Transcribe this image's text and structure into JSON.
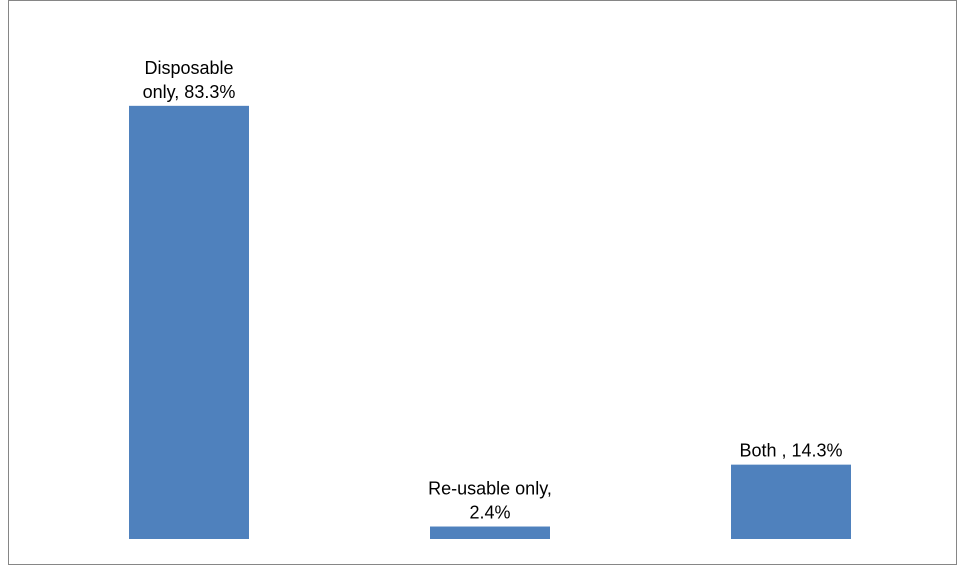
{
  "chart_data": {
    "type": "bar",
    "title": "",
    "xlabel": "",
    "ylabel": "",
    "categories": [
      "Disposable only",
      "Re-usable only",
      "Both"
    ],
    "values": [
      83.3,
      2.4,
      14.3
    ],
    "unit": "%",
    "data_labels": [
      [
        "Disposable",
        "only, 83.3%"
      ],
      [
        "Re-usable only,",
        "2.4%"
      ],
      [
        "Both , 14.3%"
      ]
    ],
    "bar_color": "#4F81BD",
    "ylim": [
      0,
      100
    ],
    "grid": false,
    "legend": "none"
  }
}
